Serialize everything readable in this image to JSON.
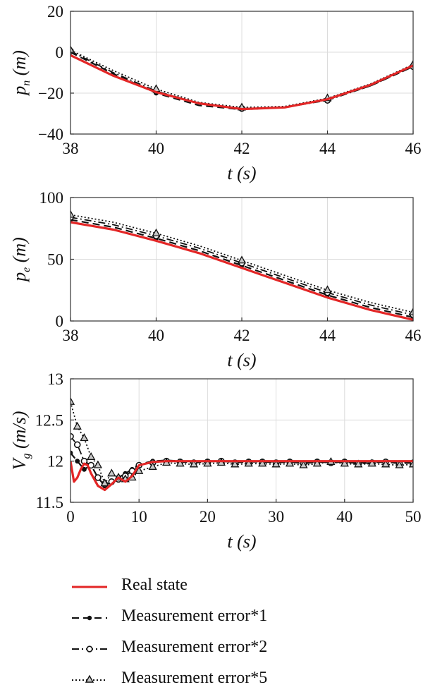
{
  "chart_data": [
    {
      "type": "line",
      "id": "pn",
      "ylabel_main": "p",
      "ylabel_sub": "n",
      "ylabel_unit": "(m)",
      "xlabel": "t (s)",
      "xlim": [
        38,
        46
      ],
      "ylim": [
        -40,
        20
      ],
      "xticks": [
        38,
        40,
        42,
        44,
        46
      ],
      "yticks": [
        -40,
        -20,
        0,
        20
      ],
      "xtick_labels": [
        "38",
        "40",
        "42",
        "44",
        "46"
      ],
      "ytick_labels": [
        "−40",
        "−20",
        "0",
        "20"
      ],
      "grid": true,
      "series": [
        {
          "name": "Real state",
          "x": [
            38,
            39,
            40,
            41,
            42,
            43,
            44,
            45,
            46
          ],
          "y": [
            -1.5,
            -11.5,
            -19.5,
            -25,
            -27.8,
            -27,
            -23,
            -16,
            -6.5
          ]
        },
        {
          "name": "Measurement error*1",
          "x": [
            38,
            39,
            40,
            41,
            42,
            43,
            44,
            45,
            46
          ],
          "y": [
            0,
            -10.5,
            -20,
            -26,
            -28,
            -27,
            -23,
            -16.5,
            -7
          ]
        },
        {
          "name": "Measurement error*2",
          "x": [
            38,
            39,
            40,
            41,
            42,
            43,
            44,
            45,
            46
          ],
          "y": [
            0.5,
            -10,
            -19,
            -25,
            -27.5,
            -27,
            -23.5,
            -16.5,
            -7
          ]
        },
        {
          "name": "Measurement error*5",
          "x": [
            38,
            39,
            40,
            41,
            42,
            43,
            44,
            45,
            46
          ],
          "y": [
            1,
            -9,
            -18,
            -24.5,
            -27,
            -26.5,
            -22.5,
            -15.5,
            -6
          ]
        }
      ]
    },
    {
      "type": "line",
      "id": "pe",
      "ylabel_main": "p",
      "ylabel_sub": "e",
      "ylabel_unit": "(m)",
      "xlabel": "t (s)",
      "xlim": [
        38,
        46
      ],
      "ylim": [
        0,
        100
      ],
      "xticks": [
        38,
        40,
        42,
        44,
        46
      ],
      "yticks": [
        0,
        50,
        100
      ],
      "xtick_labels": [
        "38",
        "40",
        "42",
        "44",
        "46"
      ],
      "ytick_labels": [
        "0",
        "50",
        "100"
      ],
      "grid": true,
      "series": [
        {
          "name": "Real state",
          "x": [
            38,
            39,
            40,
            41,
            42,
            43,
            44,
            45,
            46
          ],
          "y": [
            80,
            74,
            65,
            55,
            43,
            31,
            19,
            9,
            1
          ]
        },
        {
          "name": "Measurement error*1",
          "x": [
            38,
            39,
            40,
            41,
            42,
            43,
            44,
            45,
            46
          ],
          "y": [
            82,
            76,
            67,
            57,
            45,
            33,
            21,
            11,
            3
          ]
        },
        {
          "name": "Measurement error*2",
          "x": [
            38,
            39,
            40,
            41,
            42,
            43,
            44,
            45,
            46
          ],
          "y": [
            84,
            78,
            69,
            59,
            47,
            35,
            23,
            13,
            5
          ]
        },
        {
          "name": "Measurement error*5",
          "x": [
            38,
            39,
            40,
            41,
            42,
            43,
            44,
            45,
            46
          ],
          "y": [
            86,
            80,
            71,
            61,
            49,
            37,
            25,
            15,
            7
          ]
        }
      ]
    },
    {
      "type": "line",
      "id": "vg",
      "ylabel_main": "V",
      "ylabel_sub": "g",
      "ylabel_unit": "(m/s)",
      "xlabel": "t (s)",
      "xlim": [
        0,
        50
      ],
      "ylim": [
        11.5,
        13
      ],
      "xticks": [
        0,
        10,
        20,
        30,
        40,
        50
      ],
      "yticks": [
        11.5,
        12,
        12.5,
        13
      ],
      "xtick_labels": [
        "0",
        "10",
        "20",
        "30",
        "40",
        "50"
      ],
      "ytick_labels": [
        "11.5",
        "12",
        "12.5",
        "13"
      ],
      "grid": true,
      "series": [
        {
          "name": "Real state",
          "x": [
            0,
            0.5,
            1,
            1.5,
            2,
            2.5,
            3,
            4,
            5,
            6,
            7,
            8,
            9,
            10,
            12,
            14,
            16,
            20,
            25,
            30,
            35,
            40,
            45,
            50
          ],
          "y": [
            12.0,
            11.75,
            11.8,
            11.9,
            11.97,
            11.95,
            11.85,
            11.7,
            11.65,
            11.72,
            11.8,
            11.75,
            11.82,
            11.95,
            11.99,
            12.0,
            12.0,
            12.0,
            12.0,
            12.0,
            12.0,
            12.0,
            12.0,
            12.0
          ]
        },
        {
          "name": "Measurement error*1",
          "x": [
            0,
            1,
            2,
            3,
            4,
            5,
            6,
            7,
            8,
            9,
            10,
            12,
            14,
            16,
            18,
            20,
            22,
            24,
            26,
            28,
            30,
            32,
            34,
            36,
            38,
            40,
            42,
            44,
            46,
            48,
            50
          ],
          "y": [
            12.1,
            12.0,
            11.9,
            11.95,
            11.8,
            11.7,
            11.75,
            11.8,
            11.85,
            11.9,
            11.96,
            12.0,
            12.01,
            12.0,
            11.99,
            12.0,
            12.0,
            11.99,
            12.0,
            12.0,
            11.99,
            12.0,
            11.98,
            12.0,
            11.99,
            12.0,
            11.98,
            11.99,
            12.0,
            11.98,
            11.99
          ]
        },
        {
          "name": "Measurement error*2",
          "x": [
            0,
            1,
            2,
            3,
            4,
            5,
            6,
            7,
            8,
            9,
            10,
            12,
            14,
            16,
            18,
            20,
            22,
            24,
            26,
            28,
            30,
            32,
            34,
            36,
            38,
            40,
            42,
            44,
            46,
            48,
            50
          ],
          "y": [
            12.3,
            12.2,
            12.0,
            11.95,
            11.8,
            11.72,
            11.75,
            11.78,
            11.82,
            11.88,
            11.95,
            11.98,
            12.0,
            11.99,
            11.98,
            11.99,
            12.0,
            11.98,
            11.99,
            11.99,
            11.98,
            11.99,
            11.97,
            11.99,
            11.98,
            11.99,
            11.97,
            11.98,
            11.99,
            11.97,
            11.98
          ]
        },
        {
          "name": "Measurement error*5",
          "x": [
            0,
            1,
            2,
            3,
            4,
            5,
            6,
            7,
            8,
            9,
            10,
            12,
            14,
            16,
            18,
            20,
            22,
            24,
            26,
            28,
            30,
            32,
            34,
            36,
            38,
            40,
            42,
            44,
            46,
            48,
            50
          ],
          "y": [
            12.72,
            12.42,
            12.28,
            12.05,
            11.95,
            11.73,
            11.85,
            11.8,
            11.78,
            11.8,
            11.88,
            11.93,
            11.98,
            11.97,
            11.96,
            11.97,
            11.98,
            11.96,
            11.97,
            11.97,
            11.96,
            11.97,
            11.95,
            11.97,
            11.99,
            11.97,
            11.96,
            11.97,
            11.96,
            11.95,
            11.96
          ]
        }
      ]
    }
  ],
  "legend": {
    "items": [
      {
        "label": "Real state",
        "color": "#e32626",
        "style": "solid",
        "marker": "none"
      },
      {
        "label": "Measurement error*1",
        "color": "#111111",
        "style": "dashed",
        "marker": "dot"
      },
      {
        "label": "Measurement error*2",
        "color": "#111111",
        "style": "dashdot",
        "marker": "circle"
      },
      {
        "label": "Measurement error*5",
        "color": "#111111",
        "style": "dotted",
        "marker": "triangle"
      }
    ]
  }
}
